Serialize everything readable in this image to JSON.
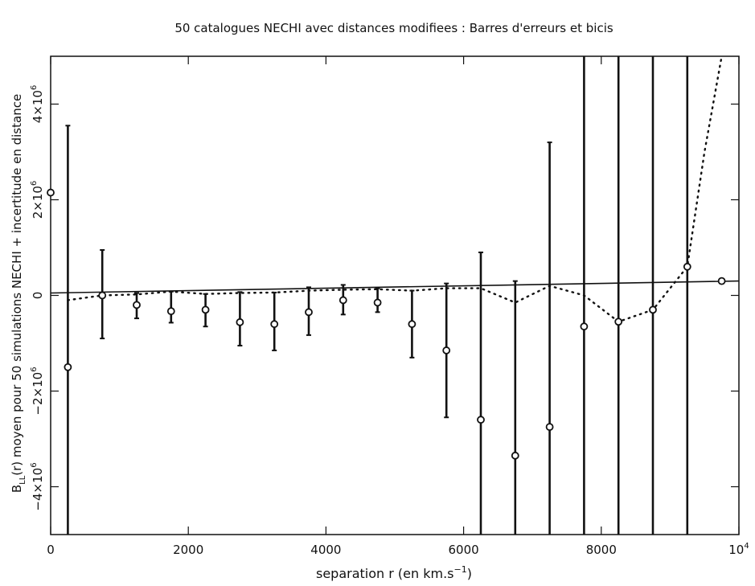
{
  "chart_data": {
    "type": "scatter",
    "title": "50 catalogues NECHI avec distances modifiees : Barres d'erreurs et bicis",
    "xlabel": "separation r (en km.s",
    "xlabel_sup": "−1",
    "xlabel_end": ")",
    "ylabel": "B",
    "ylabel_sub": "LL",
    "ylabel_rest": "(r) moyen pour 50 simulations NECHI + incertitude en distance",
    "xlim": [
      0,
      10000
    ],
    "ylim": [
      -5000000,
      5000000
    ],
    "x_ticks": [
      {
        "value": 0,
        "label": "0"
      },
      {
        "value": 2000,
        "label": "2000"
      },
      {
        "value": 4000,
        "label": "4000"
      },
      {
        "value": 6000,
        "label": "6000"
      },
      {
        "value": 8000,
        "label": "8000"
      },
      {
        "value": 10000,
        "label": "10",
        "sup": "4"
      }
    ],
    "y_ticks": [
      {
        "value": -4000000,
        "label": "−4×10",
        "sup": "6"
      },
      {
        "value": -2000000,
        "label": "−2×10",
        "sup": "6"
      },
      {
        "value": 0,
        "label": "0"
      },
      {
        "value": 2000000,
        "label": "2×10",
        "sup": "6"
      },
      {
        "value": 4000000,
        "label": "4×10",
        "sup": "6"
      }
    ],
    "grid": false,
    "legend": "none",
    "series": [
      {
        "type": "errorbar",
        "marker": "circle",
        "points": [
          {
            "x": 0,
            "y": 2150000,
            "lo": 2150000,
            "hi": 2150000
          },
          {
            "x": 250,
            "y": -1500000,
            "lo": -5000000,
            "hi": 3550000
          },
          {
            "x": 750,
            "y": 0,
            "lo": -900000,
            "hi": 950000
          },
          {
            "x": 1250,
            "y": -200000,
            "lo": -480000,
            "hi": 50000
          },
          {
            "x": 1750,
            "y": -330000,
            "lo": -570000,
            "hi": 80000
          },
          {
            "x": 2250,
            "y": -300000,
            "lo": -650000,
            "hi": 30000
          },
          {
            "x": 2750,
            "y": -560000,
            "lo": -1050000,
            "hi": 70000
          },
          {
            "x": 3250,
            "y": -600000,
            "lo": -1150000,
            "hi": 60000
          },
          {
            "x": 3750,
            "y": -350000,
            "lo": -830000,
            "hi": 170000
          },
          {
            "x": 4250,
            "y": -100000,
            "lo": -400000,
            "hi": 220000
          },
          {
            "x": 4750,
            "y": -150000,
            "lo": -350000,
            "hi": 150000
          },
          {
            "x": 5250,
            "y": -600000,
            "lo": -1300000,
            "hi": 100000
          },
          {
            "x": 5750,
            "y": -1150000,
            "lo": -2550000,
            "hi": 250000
          },
          {
            "x": 6250,
            "y": -2600000,
            "lo": -5000000,
            "hi": 900000
          },
          {
            "x": 6750,
            "y": -3350000,
            "lo": -5000000,
            "hi": 300000
          },
          {
            "x": 7250,
            "y": -2750000,
            "lo": -5000000,
            "hi": 3200000
          },
          {
            "x": 7750,
            "y": -650000,
            "lo": -5000000,
            "hi": 5000000
          },
          {
            "x": 8250,
            "y": -550000,
            "lo": -5000000,
            "hi": 5000000
          },
          {
            "x": 8750,
            "y": -300000,
            "lo": -5000000,
            "hi": 5000000
          },
          {
            "x": 9250,
            "y": 600000,
            "lo": -5000000,
            "hi": 5000000
          },
          {
            "x": 9750,
            "y": 300000,
            "lo": 300000,
            "hi": 300000
          }
        ]
      },
      {
        "type": "line",
        "style": "solid",
        "points": [
          [
            0,
            50000
          ],
          [
            10000,
            300000
          ]
        ]
      },
      {
        "type": "line",
        "style": "dotted",
        "points": [
          [
            250,
            -100000
          ],
          [
            750,
            0
          ],
          [
            1250,
            20000
          ],
          [
            1750,
            80000
          ],
          [
            2250,
            30000
          ],
          [
            2750,
            50000
          ],
          [
            3250,
            60000
          ],
          [
            3750,
            100000
          ],
          [
            4250,
            120000
          ],
          [
            4750,
            130000
          ],
          [
            5250,
            100000
          ],
          [
            5750,
            150000
          ],
          [
            6250,
            150000
          ],
          [
            6750,
            -150000
          ],
          [
            7250,
            200000
          ],
          [
            7750,
            0
          ],
          [
            8250,
            -550000
          ],
          [
            8750,
            -300000
          ],
          [
            9250,
            600000
          ],
          [
            9500,
            3000000
          ],
          [
            9750,
            5000000
          ]
        ]
      }
    ]
  }
}
